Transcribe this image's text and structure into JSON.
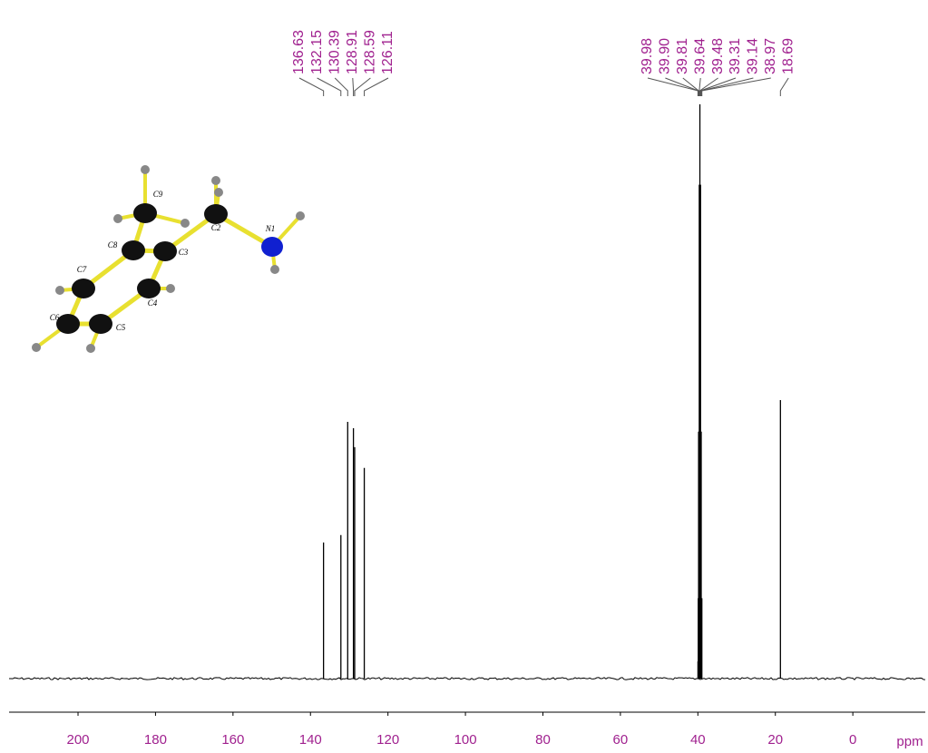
{
  "chart_data": {
    "type": "spectrum",
    "x_label": "ppm",
    "x": [
      136.63,
      132.15,
      130.39,
      128.91,
      128.59,
      126.11,
      39.98,
      39.9,
      39.81,
      39.64,
      39.48,
      39.31,
      39.14,
      38.97,
      18.69
    ],
    "peak_labels": [
      "136.63",
      "132.15",
      "130.39",
      "128.91",
      "128.59",
      "126.11",
      "39.98",
      "39.90",
      "39.81",
      "39.64",
      "39.48",
      "39.31",
      "39.14",
      "38.97",
      "18.69"
    ],
    "values": [
      23.7,
      25,
      44.7,
      43.6,
      40.3,
      36.7,
      3,
      14,
      43,
      86,
      100,
      86,
      43,
      14,
      48.5
    ],
    "color": "#000000",
    "label_color": "#a0218f",
    "xlim": [
      217.8,
      -18.7
    ],
    "xticks": [
      200,
      180,
      160,
      140,
      120,
      100,
      80,
      60,
      40,
      20,
      0
    ],
    "ylim": [
      0,
      100
    ],
    "molecule": {
      "atoms": [
        "C9",
        "C2",
        "N1",
        "C8",
        "C3",
        "C7",
        "C4",
        "C6",
        "C5"
      ]
    }
  }
}
